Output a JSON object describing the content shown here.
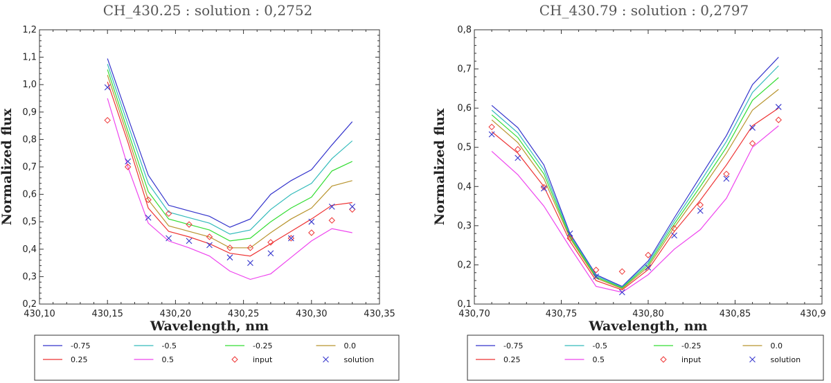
{
  "chart_data": [
    {
      "type": "line",
      "title": "CH_430.25 : solution : 0,2752",
      "xlabel": "Wavelength, nm",
      "ylabel": "Normalized flux",
      "xlim": [
        430.1,
        430.35
      ],
      "ylim": [
        0.2,
        1.2
      ],
      "xticks": [
        "430,10",
        "430,15",
        "430,20",
        "430,25",
        "430,30",
        "430,35"
      ],
      "yticks": [
        "0,2",
        "0,3",
        "0,4",
        "0,5",
        "0,6",
        "0,7",
        "0,8",
        "0,9",
        "1,0",
        "1,1",
        "1,2"
      ],
      "x": [
        430.15,
        430.165,
        430.18,
        430.195,
        430.21,
        430.225,
        430.24,
        430.255,
        430.27,
        430.285,
        430.3,
        430.315,
        430.33
      ],
      "series": [
        {
          "name": "-0.75",
          "color": "#3333cc",
          "values": [
            1.095,
            0.88,
            0.67,
            0.56,
            0.54,
            0.52,
            0.48,
            0.51,
            0.6,
            0.65,
            0.69,
            0.78,
            0.865
          ]
        },
        {
          "name": "-0.5",
          "color": "#33bbbb",
          "values": [
            1.075,
            0.855,
            0.64,
            0.535,
            0.515,
            0.495,
            0.455,
            0.47,
            0.545,
            0.6,
            0.64,
            0.73,
            0.795
          ]
        },
        {
          "name": "-0.25",
          "color": "#33dd33",
          "values": [
            1.055,
            0.83,
            0.61,
            0.51,
            0.49,
            0.47,
            0.43,
            0.44,
            0.5,
            0.55,
            0.59,
            0.685,
            0.72
          ]
        },
        {
          "name": "0.0",
          "color": "#b8942e",
          "values": [
            1.035,
            0.81,
            0.58,
            0.485,
            0.465,
            0.445,
            0.405,
            0.405,
            0.46,
            0.51,
            0.55,
            0.63,
            0.65
          ]
        },
        {
          "name": "0.25",
          "color": "#ee3333",
          "values": [
            1.01,
            0.79,
            0.55,
            0.465,
            0.445,
            0.42,
            0.385,
            0.375,
            0.42,
            0.465,
            0.51,
            0.56,
            0.57
          ]
        },
        {
          "name": "0.5",
          "color": "#ee44ee",
          "values": [
            0.95,
            0.7,
            0.495,
            0.43,
            0.405,
            0.375,
            0.32,
            0.29,
            0.31,
            0.37,
            0.43,
            0.475,
            0.46
          ]
        }
      ],
      "input": {
        "name": "input",
        "color": "#ee3333",
        "values": [
          0.87,
          0.7,
          0.58,
          0.53,
          0.49,
          0.445,
          0.405,
          0.405,
          0.425,
          0.44,
          0.46,
          0.505,
          0.545
        ]
      },
      "solution": {
        "name": "solution",
        "color": "#3333cc",
        "values": [
          0.99,
          0.72,
          0.515,
          0.44,
          0.43,
          0.415,
          0.37,
          0.35,
          0.385,
          0.44,
          0.5,
          0.555,
          0.555
        ]
      },
      "legend": [
        "-0.75",
        "-0.5",
        "-0.25",
        "0.0",
        "0.25",
        "0.5",
        "input",
        "solution"
      ]
    },
    {
      "type": "line",
      "title": "CH_430.79 : solution : 0,2797",
      "xlabel": "Wavelength, nm",
      "ylabel": "Normalized flux",
      "xlim": [
        430.7,
        430.9
      ],
      "ylim": [
        0.1,
        0.8
      ],
      "xticks": [
        "430,70",
        "430,75",
        "430,80",
        "430,85",
        "430,9"
      ],
      "yticks": [
        "0,1",
        "0,2",
        "0,3",
        "0,4",
        "0,5",
        "0,6",
        "0,7",
        "0,8"
      ],
      "x": [
        430.71,
        430.725,
        430.74,
        430.755,
        430.77,
        430.785,
        430.8,
        430.815,
        430.83,
        430.845,
        430.86,
        430.875
      ],
      "series": [
        {
          "name": "-0.75",
          "color": "#3333cc",
          "values": [
            0.607,
            0.55,
            0.455,
            0.28,
            0.175,
            0.145,
            0.21,
            0.32,
            0.425,
            0.53,
            0.66,
            0.73
          ]
        },
        {
          "name": "-0.5",
          "color": "#33bbbb",
          "values": [
            0.595,
            0.537,
            0.443,
            0.276,
            0.172,
            0.143,
            0.205,
            0.312,
            0.412,
            0.515,
            0.64,
            0.708
          ]
        },
        {
          "name": "-0.25",
          "color": "#33dd33",
          "values": [
            0.583,
            0.525,
            0.432,
            0.272,
            0.169,
            0.141,
            0.2,
            0.304,
            0.4,
            0.5,
            0.62,
            0.678
          ]
        },
        {
          "name": "0.0",
          "color": "#b8942e",
          "values": [
            0.57,
            0.512,
            0.42,
            0.268,
            0.166,
            0.139,
            0.195,
            0.296,
            0.388,
            0.485,
            0.595,
            0.648
          ]
        },
        {
          "name": "0.25",
          "color": "#ee3333",
          "values": [
            0.54,
            0.485,
            0.4,
            0.26,
            0.16,
            0.136,
            0.188,
            0.285,
            0.365,
            0.455,
            0.555,
            0.6
          ]
        },
        {
          "name": "0.5",
          "color": "#ee44ee",
          "values": [
            0.49,
            0.43,
            0.35,
            0.245,
            0.145,
            0.13,
            0.175,
            0.24,
            0.29,
            0.37,
            0.5,
            0.555
          ]
        }
      ],
      "input": {
        "name": "input",
        "color": "#ee3333",
        "values": [
          0.552,
          0.495,
          0.398,
          0.268,
          0.187,
          0.183,
          0.225,
          0.293,
          0.353,
          0.432,
          0.51,
          0.57
        ]
      },
      "solution": {
        "name": "solution",
        "color": "#3333cc",
        "values": [
          0.533,
          0.473,
          0.395,
          0.28,
          0.17,
          0.13,
          0.193,
          0.275,
          0.338,
          0.42,
          0.55,
          0.603
        ]
      },
      "legend": [
        "-0.75",
        "-0.5",
        "-0.25",
        "0.0",
        "0.25",
        "0.5",
        "input",
        "solution"
      ]
    }
  ]
}
